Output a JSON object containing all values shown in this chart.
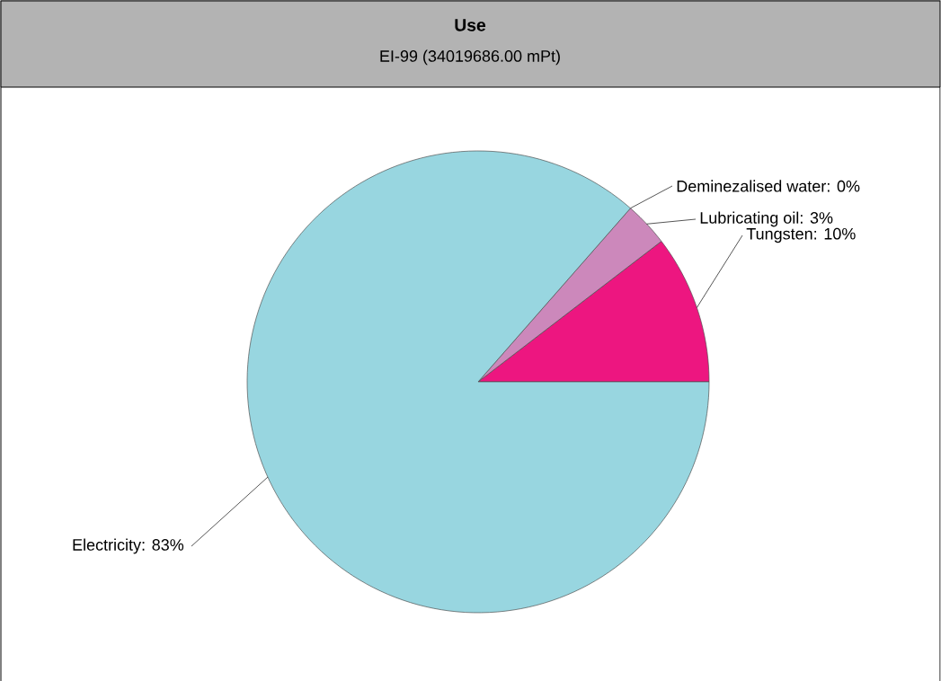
{
  "chart_data": {
    "type": "pie",
    "title": "Use",
    "subtitle": "EI-99 (34019686.00 mPt)",
    "categories": [
      "Tungsten",
      "Lubricating oil",
      "Deminezalised water",
      "Electricity"
    ],
    "values": [
      10,
      3,
      0,
      83
    ],
    "colors": [
      "#ed1680",
      "#cc88bb",
      "#f2e2a0",
      "#98d6e0"
    ],
    "value_labels": [
      ": 10%",
      ": 3%",
      ": 0%",
      ": 83%"
    ]
  }
}
